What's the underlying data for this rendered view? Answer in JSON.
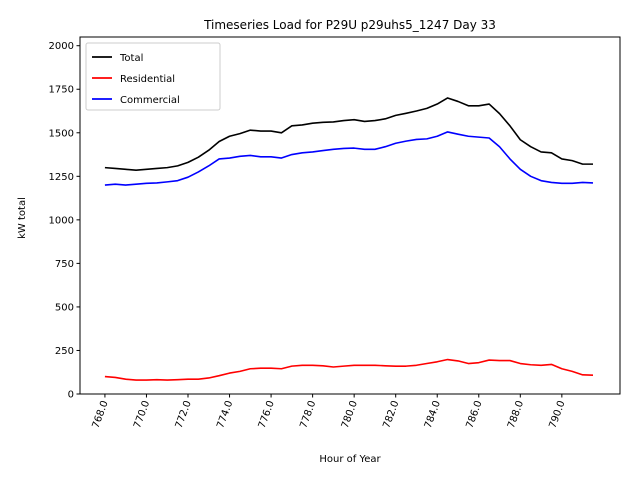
{
  "chart_data": {
    "type": "line",
    "title": "Timeseries Load for P29U p29uhs5_1247  Day 33",
    "xlabel": "Hour of Year",
    "ylabel": "kW total",
    "xlim": [
      766.8,
      792.8
    ],
    "ylim": [
      0,
      2050
    ],
    "xticks": [
      768,
      770,
      772,
      774,
      776,
      778,
      780,
      782,
      784,
      786,
      788,
      790
    ],
    "xtick_labels": [
      "768.0",
      "770.0",
      "772.0",
      "774.0",
      "776.0",
      "778.0",
      "780.0",
      "782.0",
      "784.0",
      "786.0",
      "788.0",
      "790.0"
    ],
    "yticks": [
      0,
      250,
      500,
      750,
      1000,
      1250,
      1500,
      1750,
      2000
    ],
    "ytick_labels": [
      "0",
      "250",
      "500",
      "750",
      "1000",
      "1250",
      "1500",
      "1750",
      "2000"
    ],
    "grid": false,
    "legend_position": "top-left",
    "x": [
      768,
      768.5,
      769,
      769.5,
      770,
      770.5,
      771,
      771.5,
      772,
      772.5,
      773,
      773.5,
      774,
      774.5,
      775,
      775.5,
      776,
      776.5,
      777,
      777.5,
      778,
      778.5,
      779,
      779.5,
      780,
      780.5,
      781,
      781.5,
      782,
      782.5,
      783,
      783.5,
      784,
      784.5,
      785,
      785.5,
      786,
      786.5,
      787,
      787.5,
      788,
      788.5,
      789,
      789.5,
      790,
      790.5,
      791,
      791.5
    ],
    "series": [
      {
        "name": "Total",
        "color": "#000000",
        "values": [
          1300,
          1295,
          1290,
          1285,
          1290,
          1295,
          1300,
          1310,
          1330,
          1360,
          1400,
          1450,
          1480,
          1495,
          1515,
          1510,
          1510,
          1500,
          1540,
          1545,
          1555,
          1560,
          1562,
          1570,
          1575,
          1565,
          1570,
          1580,
          1600,
          1612,
          1625,
          1640,
          1665,
          1700,
          1680,
          1655,
          1655,
          1665,
          1610,
          1540,
          1460,
          1420,
          1390,
          1385,
          1350,
          1340,
          1320,
          1320
        ]
      },
      {
        "name": "Residential",
        "color": "#ff0000",
        "values": [
          100,
          95,
          85,
          80,
          80,
          82,
          80,
          82,
          85,
          85,
          92,
          105,
          120,
          130,
          145,
          148,
          148,
          145,
          160,
          165,
          165,
          162,
          155,
          160,
          165,
          165,
          165,
          162,
          160,
          160,
          165,
          175,
          185,
          198,
          190,
          175,
          180,
          195,
          192,
          192,
          175,
          168,
          165,
          170,
          145,
          130,
          110,
          108
        ]
      },
      {
        "name": "Commercial",
        "color": "#0000ff",
        "values": [
          1200,
          1205,
          1200,
          1205,
          1210,
          1212,
          1218,
          1225,
          1245,
          1275,
          1310,
          1350,
          1355,
          1365,
          1370,
          1362,
          1362,
          1355,
          1375,
          1385,
          1390,
          1398,
          1405,
          1410,
          1412,
          1405,
          1405,
          1420,
          1440,
          1452,
          1462,
          1465,
          1480,
          1505,
          1492,
          1480,
          1475,
          1470,
          1420,
          1350,
          1290,
          1250,
          1225,
          1215,
          1210,
          1210,
          1215,
          1212
        ]
      }
    ]
  }
}
